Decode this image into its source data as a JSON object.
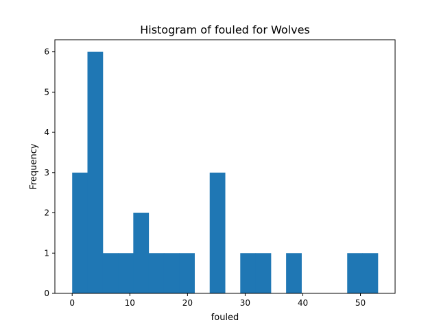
{
  "chart_data": {
    "type": "histogram",
    "title": "Histogram of fouled for Wolves",
    "xlabel": "fouled",
    "ylabel": "Frequency",
    "x_range": [
      0,
      53
    ],
    "bin_width": 2.65,
    "counts": [
      3,
      6,
      1,
      1,
      2,
      1,
      1,
      1,
      0,
      3,
      0,
      1,
      1,
      0,
      1,
      0,
      0,
      0,
      1,
      1
    ],
    "xlim": [
      -3,
      56
    ],
    "ylim": [
      0,
      6.3
    ],
    "xticks": [
      0,
      10,
      20,
      30,
      40,
      50
    ],
    "yticks": [
      0,
      1,
      2,
      3,
      4,
      5,
      6
    ],
    "bar_color": "#1f77b4"
  }
}
